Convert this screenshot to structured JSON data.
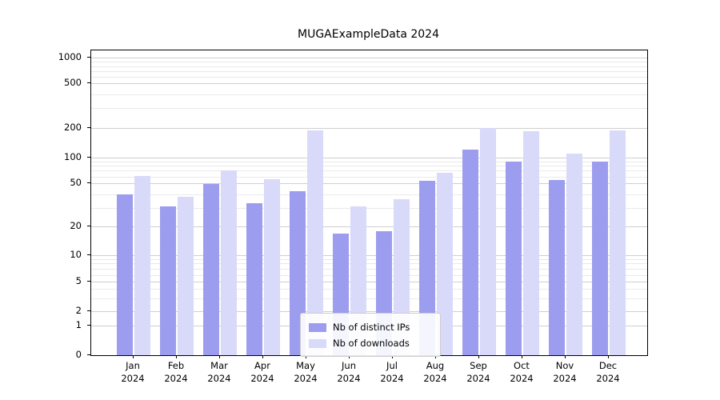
{
  "chart_data": {
    "type": "bar",
    "title": "MUGAExampleData 2024",
    "categories": [
      "Jan",
      "Feb",
      "Mar",
      "Apr",
      "May",
      "Jun",
      "Jul",
      "Aug",
      "Sep",
      "Oct",
      "Nov",
      "Dec"
    ],
    "x_tick_second_line": "2024",
    "series": [
      {
        "name": "Nb of distinct IPs",
        "color": "#9d9df0",
        "values": [
          40,
          31,
          50,
          33,
          43,
          17,
          18,
          54,
          120,
          90,
          56,
          90
        ]
      },
      {
        "name": "Nb of downloads",
        "color": "#d9d9f9",
        "values": [
          62,
          38,
          72,
          57,
          190,
          31,
          36,
          67,
          200,
          185,
          110,
          190
        ]
      }
    ],
    "y_ticks": [
      0,
      1,
      2,
      5,
      10,
      20,
      50,
      100,
      200,
      500,
      1000
    ],
    "scale": "symlog",
    "ylim": [
      0,
      1100
    ],
    "grid": "both",
    "grid_major_color": "#cfcfcf",
    "grid_minor_color": "#eaeaea",
    "axis_color": "#000000",
    "legend_position": "lower center"
  }
}
